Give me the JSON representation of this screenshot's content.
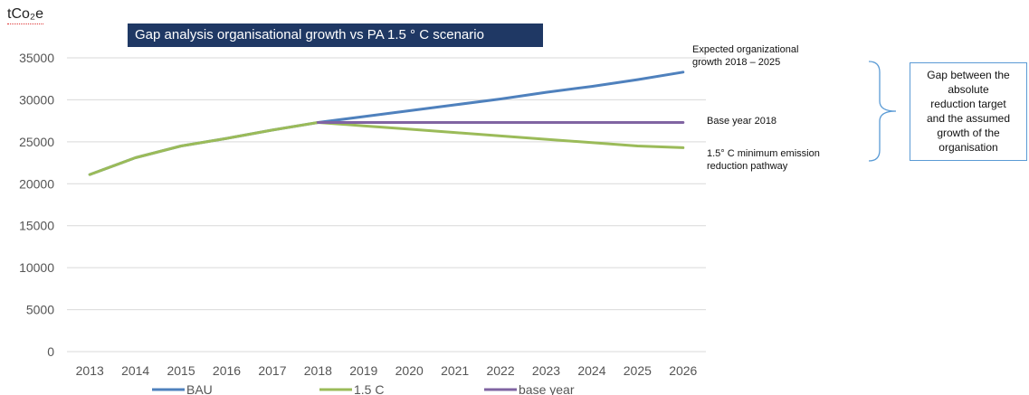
{
  "chart_data": {
    "type": "line",
    "title": "Gap analysis organisational growth vs PA 1.5 ° C scenario",
    "ylabel": "tCo₂e",
    "xlabel": "",
    "ylim": [
      0,
      35000
    ],
    "yticks": [
      0,
      5000,
      10000,
      15000,
      20000,
      25000,
      30000,
      35000
    ],
    "categories": [
      "2013",
      "2014",
      "2015",
      "2016",
      "2017",
      "2018",
      "2019",
      "2020",
      "2021",
      "2022",
      "2023",
      "2024",
      "2025",
      "2026"
    ],
    "series": [
      {
        "name": "BAU",
        "color": "#4f81bd",
        "values": [
          21100,
          23100,
          24500,
          25400,
          26400,
          27300,
          28000,
          28700,
          29400,
          30100,
          30900,
          31600,
          32400,
          33300
        ]
      },
      {
        "name": "1.5 C",
        "color": "#9bbb59",
        "values": [
          21100,
          23100,
          24500,
          25400,
          26400,
          27300,
          26900,
          26500,
          26100,
          25700,
          25300,
          24900,
          24500,
          24300
        ]
      },
      {
        "name": "base year",
        "color": "#8064a2",
        "values": [
          null,
          null,
          null,
          null,
          null,
          27300,
          27300,
          27300,
          27300,
          27300,
          27300,
          27300,
          27300,
          27300
        ]
      }
    ],
    "grid": "horizontal",
    "legend": "bottom"
  },
  "annotations": {
    "bau": "Expected organizational\ngrowth 2018 – 2025",
    "base": "Base year 2018",
    "pathway": "1.5° C minimum emission\nreduction pathway",
    "gap": "Gap between the\nabsolute\nreduction target\nand the assumed\ngrowth of the\norganisation"
  }
}
